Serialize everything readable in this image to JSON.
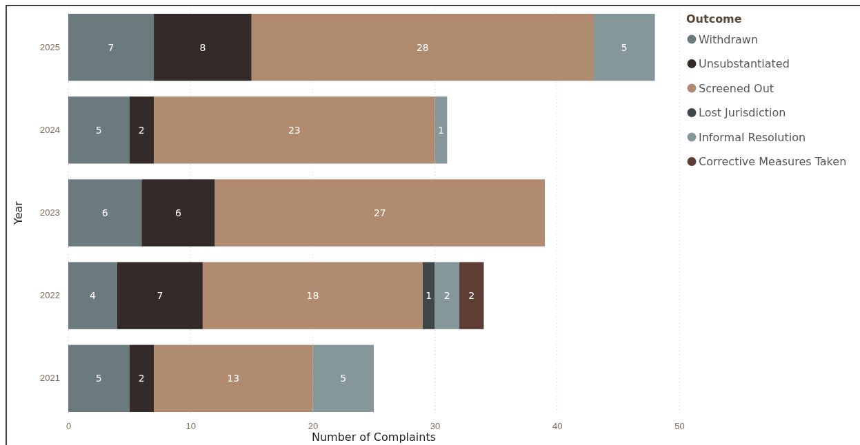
{
  "chart_data": {
    "type": "bar",
    "orientation": "horizontal",
    "stacked": true,
    "xlabel": "Number of Complaints",
    "ylabel": "Year",
    "legend_title": "Outcome",
    "legend": "top right",
    "grid": "x",
    "data_labels": true,
    "categories": [
      "2025",
      "2024",
      "2023",
      "2022",
      "2021"
    ],
    "xlim": [
      0,
      50
    ],
    "xticks": [
      0,
      10,
      20,
      30,
      40,
      50
    ],
    "series": [
      {
        "name": "Withdrawn",
        "color": "#6b7a7c",
        "values": [
          7,
          5,
          6,
          4,
          5
        ]
      },
      {
        "name": "Unsubstantiated",
        "color": "#352a2a",
        "values": [
          8,
          2,
          6,
          7,
          2
        ]
      },
      {
        "name": "Screened Out",
        "color": "#b08b70",
        "values": [
          28,
          23,
          27,
          18,
          13
        ]
      },
      {
        "name": "Lost Jurisdiction",
        "color": "#3f4748",
        "values": [
          null,
          null,
          null,
          1,
          null
        ]
      },
      {
        "name": "Informal Resolution",
        "color": "#86979a",
        "values": [
          5,
          1,
          null,
          2,
          5
        ]
      },
      {
        "name": "Corrective Measures Taken",
        "color": "#5e3d35",
        "values": [
          null,
          null,
          null,
          2,
          null
        ]
      }
    ]
  }
}
